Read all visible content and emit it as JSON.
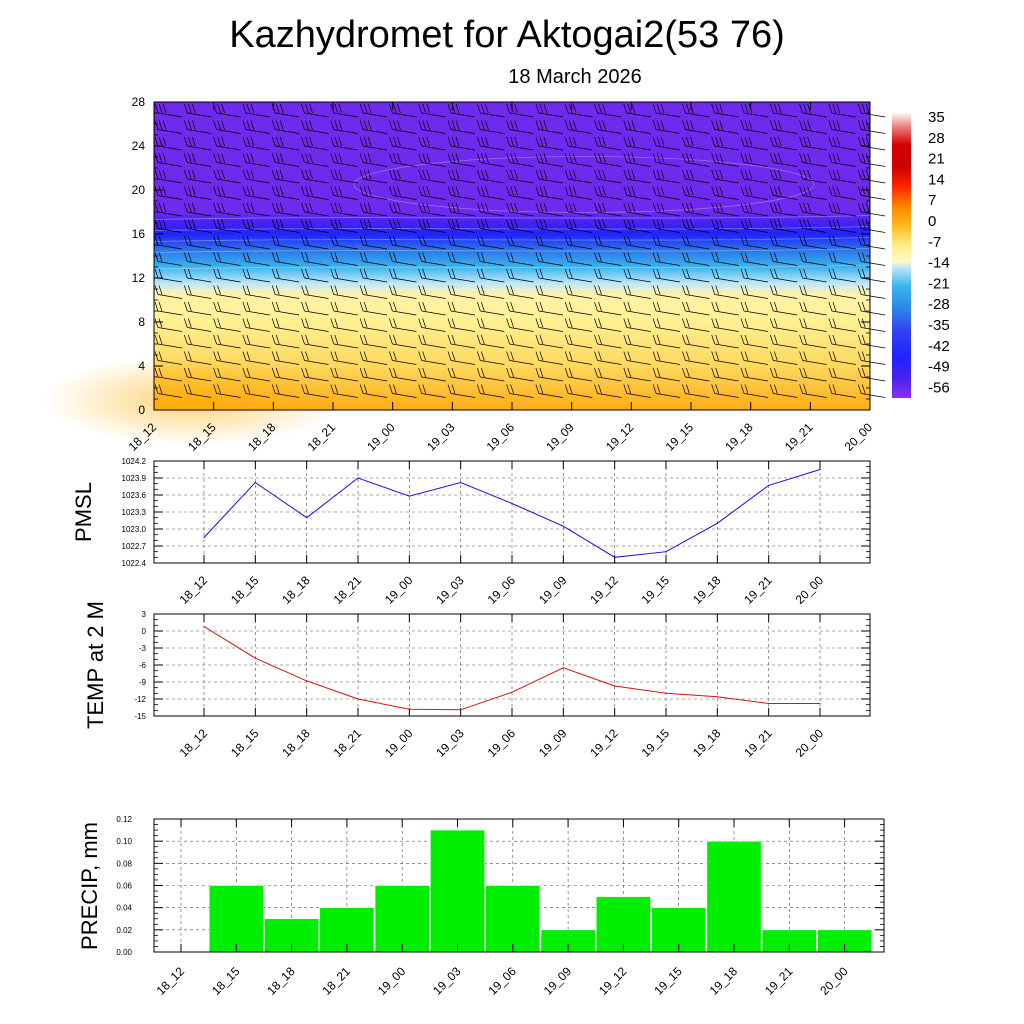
{
  "header": {
    "title": "Kazhydromet for Aktogai2(53 76)",
    "date": "18 March 2026"
  },
  "colors": {
    "pmsl_line": "#1010e0",
    "temp_line": "#e01010",
    "precip_bar": "#00ee00",
    "grid": "#555555",
    "frame": "#000000"
  },
  "chart_data": [
    {
      "id": "vertical_section",
      "type": "heatmap",
      "title": "",
      "x_tick_labels": [
        "18_12",
        "18_15",
        "18_18",
        "18_21",
        "19_00",
        "19_03",
        "19_06",
        "19_09",
        "19_12",
        "19_15",
        "19_18",
        "19_21",
        "20_00"
      ],
      "y_tick_labels": [
        "0",
        "4",
        "8",
        "12",
        "16",
        "20",
        "24",
        "28"
      ],
      "ylim": [
        0,
        28
      ],
      "colorbar_labels": [
        "35",
        "28",
        "21",
        "14",
        "7",
        "0",
        "-7",
        "-14",
        "-21",
        "-28",
        "-35",
        "-42",
        "-49",
        "-56"
      ],
      "colorbar_range": [
        -63,
        42
      ],
      "colorbar_stops": [
        {
          "value": 42,
          "color": "#ffffff"
        },
        {
          "value": 37,
          "color": "#ee8888"
        },
        {
          "value": 30,
          "color": "#d40000"
        },
        {
          "value": 22,
          "color": "#cc0000"
        },
        {
          "value": 15,
          "color": "#ff2200"
        },
        {
          "value": 7,
          "color": "#ff8800"
        },
        {
          "value": 0,
          "color": "#ffbb22"
        },
        {
          "value": -7,
          "color": "#ffee88"
        },
        {
          "value": -13,
          "color": "#fff8c8"
        },
        {
          "value": -15,
          "color": "#bfe8f8"
        },
        {
          "value": -22,
          "color": "#3ab4ee"
        },
        {
          "value": -30,
          "color": "#2a88e8"
        },
        {
          "value": -38,
          "color": "#3344ee"
        },
        {
          "value": -48,
          "color": "#2222ff"
        },
        {
          "value": -56,
          "color": "#4a22ee"
        },
        {
          "value": -63,
          "color": "#8a30ee"
        }
      ],
      "field_levels": [
        {
          "height": 0,
          "value": 2
        },
        {
          "height": 4,
          "value": -4
        },
        {
          "height": 8,
          "value": -8
        },
        {
          "height": 10.5,
          "value": -10
        },
        {
          "height": 11.5,
          "value": -15
        },
        {
          "height": 13,
          "value": -22
        },
        {
          "height": 14.5,
          "value": -32
        },
        {
          "height": 16,
          "value": -48
        },
        {
          "height": 17,
          "value": -55
        },
        {
          "height": 18,
          "value": -60
        },
        {
          "height": 28,
          "value": -60
        }
      ]
    },
    {
      "id": "pmsl",
      "type": "line",
      "ylabel": "PMSL",
      "x": [
        "18_12",
        "18_15",
        "18_18",
        "18_21",
        "19_00",
        "19_03",
        "19_06",
        "19_09",
        "19_12",
        "19_15",
        "19_18",
        "19_21",
        "20_00"
      ],
      "values": [
        1022.85,
        1023.82,
        1023.2,
        1023.9,
        1023.58,
        1023.82,
        1023.45,
        1023.05,
        1022.5,
        1022.6,
        1023.1,
        1023.77,
        1024.05
      ],
      "ylim": [
        1022.4,
        1024.2
      ],
      "y_tick_labels": [
        "1024.2",
        "1023.9",
        "1023.6",
        "1023.3",
        "1023.0",
        "1022.7",
        "1022.4"
      ]
    },
    {
      "id": "temp2m",
      "type": "line",
      "ylabel": "TEMP at 2 M",
      "x": [
        "18_12",
        "18_15",
        "18_18",
        "18_21",
        "19_00",
        "19_03",
        "19_06",
        "19_09",
        "19_12",
        "19_15",
        "19_18",
        "19_21",
        "20_00"
      ],
      "values": [
        0.8,
        -4.8,
        -8.8,
        -12.0,
        -13.8,
        -13.9,
        -10.8,
        -6.5,
        -9.7,
        -11.0,
        -11.6,
        -12.8,
        -12.8
      ],
      "ylim": [
        -15,
        3
      ],
      "y_tick_labels": [
        "3",
        "0",
        "-3",
        "-6",
        "-9",
        "-12",
        "-15"
      ]
    },
    {
      "id": "precip",
      "type": "bar",
      "ylabel": "PRECIP, mm",
      "categories": [
        "18_12",
        "18_15",
        "18_18",
        "18_21",
        "19_00",
        "19_03",
        "19_06",
        "19_09",
        "19_12",
        "19_15",
        "19_18",
        "19_21",
        "20_00"
      ],
      "values": [
        0,
        0.06,
        0.03,
        0.04,
        0.06,
        0.11,
        0.06,
        0.02,
        0.05,
        0.04,
        0.1,
        0.02,
        0.02
      ],
      "ylim": [
        0,
        0.12
      ],
      "y_tick_labels": [
        "0.12",
        "0.10",
        "0.08",
        "0.06",
        "0.04",
        "0.02",
        "0.00"
      ]
    }
  ]
}
